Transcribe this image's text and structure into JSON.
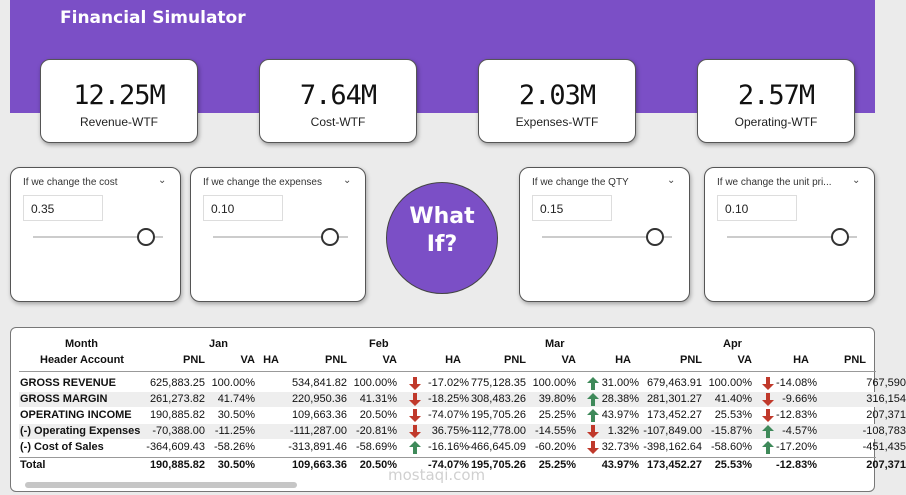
{
  "app": {
    "title": "Financial Simulator"
  },
  "kpis": [
    {
      "value": "12.25M",
      "label": "Revenue-WTF"
    },
    {
      "value": "7.64M",
      "label": "Cost-WTF"
    },
    {
      "value": "2.03M",
      "label": "Expenses-WTF"
    },
    {
      "value": "2.57M",
      "label": "Operating-WTF"
    }
  ],
  "slicers": [
    {
      "label": "If we change the cost",
      "value": "0.35",
      "level": 0.35
    },
    {
      "label": "If we change the expenses",
      "value": "0.10",
      "level": 0.1
    },
    {
      "label": "If we change the QTY",
      "value": "0.15",
      "level": 0.15
    },
    {
      "label": "If we change the unit pri...",
      "value": "0.10",
      "level": 0.1
    }
  ],
  "badge": {
    "line1": "What",
    "line2": "If?"
  },
  "table": {
    "header_month": "Month",
    "header_account": "Header Account",
    "months": [
      "Jan",
      "Feb",
      "Mar",
      "Apr"
    ],
    "col_pnl": "PNL",
    "col_va": "VA",
    "col_ha": "HA",
    "rows": [
      {
        "name": "GROSS REVENUE",
        "jan": {
          "pnl": "625,883.25",
          "va": "100.00%",
          "ha": ""
        },
        "feb": {
          "pnl": "534,841.82",
          "va": "100.00%",
          "ha": "-17.02%",
          "dir": "down"
        },
        "mar": {
          "pnl": "775,128.35",
          "va": "100.00%",
          "ha": "31.00%",
          "dir": "up"
        },
        "apr": {
          "pnl": "679,463.91",
          "va": "100.00%",
          "ha": "-14.08%",
          "dir": "down"
        },
        "may": {
          "pnl": "767,590"
        }
      },
      {
        "name": "GROSS MARGIN",
        "jan": {
          "pnl": "261,273.82",
          "va": "41.74%",
          "ha": ""
        },
        "feb": {
          "pnl": "220,950.36",
          "va": "41.31%",
          "ha": "-18.25%",
          "dir": "down"
        },
        "mar": {
          "pnl": "308,483.26",
          "va": "39.80%",
          "ha": "28.38%",
          "dir": "up"
        },
        "apr": {
          "pnl": "281,301.27",
          "va": "41.40%",
          "ha": "-9.66%",
          "dir": "down"
        },
        "may": {
          "pnl": "316,154"
        }
      },
      {
        "name": "OPERATING INCOME",
        "jan": {
          "pnl": "190,885.82",
          "va": "30.50%",
          "ha": ""
        },
        "feb": {
          "pnl": "109,663.36",
          "va": "20.50%",
          "ha": "-74.07%",
          "dir": "down"
        },
        "mar": {
          "pnl": "195,705.26",
          "va": "25.25%",
          "ha": "43.97%",
          "dir": "up"
        },
        "apr": {
          "pnl": "173,452.27",
          "va": "25.53%",
          "ha": "-12.83%",
          "dir": "down"
        },
        "may": {
          "pnl": "207,371"
        }
      },
      {
        "name": "(-) Operating Expenses",
        "jan": {
          "pnl": "-70,388.00",
          "va": "-11.25%",
          "ha": ""
        },
        "feb": {
          "pnl": "-111,287.00",
          "va": "-20.81%",
          "ha": "36.75%",
          "dir": "down"
        },
        "mar": {
          "pnl": "-112,778.00",
          "va": "-14.55%",
          "ha": "1.32%",
          "dir": "down"
        },
        "apr": {
          "pnl": "-107,849.00",
          "va": "-15.87%",
          "ha": "-4.57%",
          "dir": "up"
        },
        "may": {
          "pnl": "-108,783"
        }
      },
      {
        "name": "(-) Cost of Sales",
        "jan": {
          "pnl": "-364,609.43",
          "va": "-58.26%",
          "ha": ""
        },
        "feb": {
          "pnl": "-313,891.46",
          "va": "-58.69%",
          "ha": "-16.16%",
          "dir": "up"
        },
        "mar": {
          "pnl": "-466,645.09",
          "va": "-60.20%",
          "ha": "32.73%",
          "dir": "down"
        },
        "apr": {
          "pnl": "-398,162.64",
          "va": "-58.60%",
          "ha": "-17.20%",
          "dir": "up"
        },
        "may": {
          "pnl": "-451,435"
        }
      }
    ],
    "total": {
      "name": "Total",
      "jan": {
        "pnl": "190,885.82",
        "va": "30.50%",
        "ha": ""
      },
      "feb": {
        "pnl": "109,663.36",
        "va": "20.50%",
        "ha": "-74.07%"
      },
      "mar": {
        "pnl": "195,705.26",
        "va": "25.25%",
        "ha": "43.97%"
      },
      "apr": {
        "pnl": "173,452.27",
        "va": "25.53%",
        "ha": "-12.83%"
      },
      "may": {
        "pnl": "207,371"
      }
    }
  },
  "colors": {
    "accent": "#7b4fc6",
    "arrow_up": "#3f8a5a",
    "arrow_down": "#c0392b"
  },
  "watermark": "mostaqi.com"
}
